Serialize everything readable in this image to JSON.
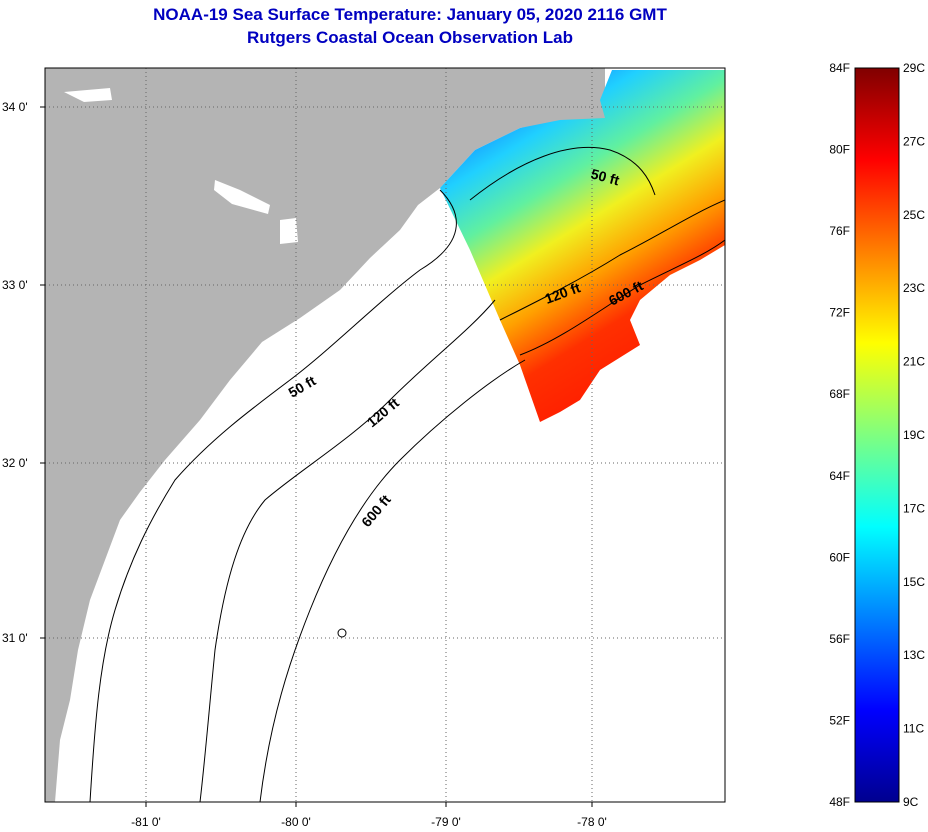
{
  "header": {
    "title": "NOAA-19 Sea Surface Temperature:  January 05, 2020 2116 GMT",
    "subtitle": "Rutgers Coastal Ocean Observation Lab"
  },
  "map": {
    "lon_ticks": [
      "-81 0'",
      "-80 0'",
      "-79 0'",
      "-78 0'"
    ],
    "lat_ticks": [
      "34 0'",
      "33 0'",
      "32 0'",
      "31 0'"
    ],
    "contours": {
      "offshore": [
        "50 ft",
        "120 ft",
        "600 ft"
      ],
      "inshore": [
        "50 ft",
        "120 ft",
        "600 ft"
      ]
    },
    "colors": {
      "land": "#b4b4b4",
      "water": "#ffffff",
      "gridline": "#666666"
    }
  },
  "colorbar": {
    "fahrenheit": [
      "84F",
      "80F",
      "76F",
      "72F",
      "68F",
      "64F",
      "60F",
      "56F",
      "52F",
      "48F"
    ],
    "celsius": [
      "29C",
      "27C",
      "25C",
      "23C",
      "21C",
      "19C",
      "17C",
      "15C",
      "13C",
      "11C",
      "9C"
    ],
    "range_celsius": [
      9,
      29
    ],
    "range_fahrenheit": [
      48,
      84
    ]
  }
}
